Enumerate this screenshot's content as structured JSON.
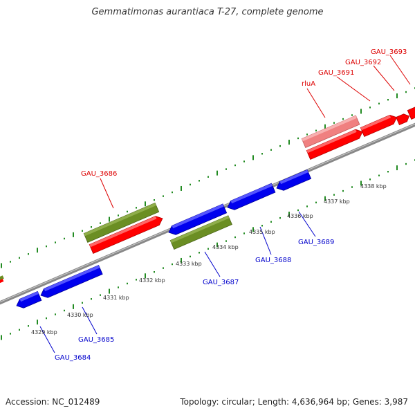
{
  "header": {
    "title": "Gemmatimonas aurantiaca T-27, complete genome"
  },
  "footer": {
    "accession": "Accession: NC_012489",
    "summary": "Topology: circular; Length: 4,636,964 bp; Genes: 3,987"
  },
  "colors": {
    "forward_gene": "#ff0000",
    "reverse_gene": "#0000ee",
    "highlight_gene": "#6b8e23",
    "rRNA_gene": "#f08080",
    "backbone": "#888888",
    "tick": "#228b22",
    "forward_label": "#dd0000",
    "reverse_label": "#0000cc"
  },
  "ticks": [
    {
      "label": "4329 kbp"
    },
    {
      "label": "4330 kbp"
    },
    {
      "label": "4331 kbp"
    },
    {
      "label": "4332 kbp"
    },
    {
      "label": "4333 kbp"
    },
    {
      "label": "4334 kbp"
    },
    {
      "label": "4335 kbp"
    },
    {
      "label": "4336 kbp"
    },
    {
      "label": "4337 kbp"
    },
    {
      "label": "4338 kbp"
    }
  ],
  "forward_genes": [
    {
      "name": "GAU_3686",
      "label": "GAU_3686"
    },
    {
      "name": "rluA",
      "label": "rluA"
    },
    {
      "name": "GAU_3691",
      "label": "GAU_3691"
    },
    {
      "name": "GAU_3692",
      "label": "GAU_3692"
    },
    {
      "name": "GAU_3693",
      "label": "GAU_3693"
    }
  ],
  "reverse_genes": [
    {
      "name": "GAU_3684",
      "label": "GAU_3684"
    },
    {
      "name": "GAU_3685",
      "label": "GAU_3685"
    },
    {
      "name": "GAU_3687",
      "label": "GAU_3687"
    },
    {
      "name": "GAU_3688",
      "label": "GAU_3688"
    },
    {
      "name": "GAU_3689",
      "label": "GAU_3689"
    }
  ]
}
